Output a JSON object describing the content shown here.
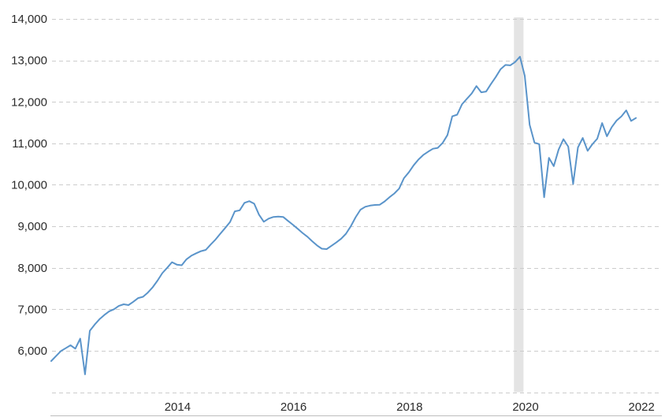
{
  "chart_data": {
    "type": "line",
    "title": "",
    "background": "#ffffff",
    "text_color": "#2b2b2b",
    "grid": {
      "horizontal": true,
      "style": "dashed",
      "color": "#cccccc",
      "axis_line_color": "#bdbdbd"
    },
    "x_axis": {
      "tick_years": [
        2014,
        2016,
        2018,
        2020,
        2022
      ],
      "tick_labels": [
        "2014",
        "2016",
        "2018",
        "2020",
        "2022"
      ]
    },
    "y_axis": {
      "tick_values": [
        14000,
        13000,
        12000,
        11000,
        10000,
        9000,
        8000,
        7000,
        6000
      ],
      "tick_labels": [
        "14,000",
        "13,000",
        "12,000",
        "11,000",
        "10,000",
        "9,000",
        "8,000",
        "7,000",
        "6,000"
      ],
      "unlabeled_tick_values": [
        5000
      ]
    },
    "ylim": [
      5000,
      14000
    ],
    "recession_band": {
      "start_year_decimal": 2019.8,
      "end_year_decimal": 2019.965,
      "color": "#e4e4e4"
    },
    "series": [
      {
        "name": "index-value-monthly",
        "color": "#5a94ca",
        "start_year_decimal": 2011.82,
        "frequency": "monthly",
        "values": [
          5750,
          5870,
          5990,
          6060,
          6130,
          6050,
          6290,
          5430,
          6480,
          6630,
          6760,
          6860,
          6950,
          7000,
          7080,
          7120,
          7100,
          7180,
          7270,
          7300,
          7400,
          7530,
          7690,
          7870,
          8000,
          8135,
          8075,
          8060,
          8205,
          8290,
          8350,
          8400,
          8430,
          8560,
          8680,
          8820,
          8960,
          9100,
          9360,
          9385,
          9565,
          9605,
          9545,
          9280,
          9110,
          9185,
          9225,
          9235,
          9225,
          9130,
          9040,
          8940,
          8840,
          8750,
          8640,
          8540,
          8460,
          8450,
          8530,
          8610,
          8700,
          8820,
          9000,
          9220,
          9400,
          9470,
          9500,
          9515,
          9520,
          9600,
          9700,
          9790,
          9910,
          10160,
          10300,
          10470,
          10610,
          10720,
          10800,
          10870,
          10890,
          11010,
          11200,
          11650,
          11690,
          11940,
          12070,
          12200,
          12380,
          12230,
          12250,
          12430,
          12600,
          12790,
          12890,
          12880,
          12960,
          13090,
          12630,
          11450,
          11020,
          10980,
          9700,
          10650,
          10450,
          10850,
          11100,
          10920,
          10020,
          10900,
          11130,
          10820,
          10980,
          11110,
          11490,
          11170,
          11390,
          11550,
          11650,
          11795,
          11540,
          11610
        ]
      }
    ]
  }
}
